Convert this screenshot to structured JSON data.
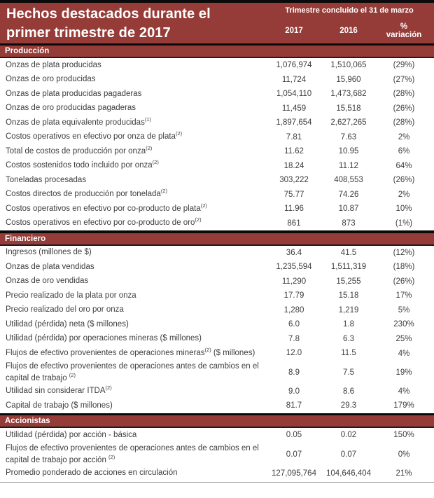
{
  "colors": {
    "brand_red": "#963C38",
    "border_black": "#0a0a0a",
    "text_gray": "#3d3d3d"
  },
  "header": {
    "title_line1": "Hechos destacados durante el",
    "title_line2": "primer trimestre de 2017",
    "period_label": "Trimestre concluido el 31 de marzo",
    "col_2017": "2017",
    "col_2016": "2016",
    "col_pct_line1": "%",
    "col_pct_line2": "variación"
  },
  "table": {
    "sections": [
      {
        "name": "Producción",
        "rows": [
          {
            "label": [
              {
                "t": "Onzas de plata producidas"
              }
            ],
            "v2017": "1,076,974",
            "v2016": "1,510,065",
            "pct": "(29%)"
          },
          {
            "label": [
              {
                "t": "Onzas de oro producidas"
              }
            ],
            "v2017": "11,724",
            "v2016": "15,960",
            "pct": "(27%)"
          },
          {
            "label": [
              {
                "t": "Onzas de plata producidas pagaderas"
              }
            ],
            "v2017": "1,054,110",
            "v2016": "1,473,682",
            "pct": "(28%)"
          },
          {
            "label": [
              {
                "t": "Onzas de oro producidas pagaderas"
              }
            ],
            "v2017": "11,459",
            "v2016": "15,518",
            "pct": "(26%)"
          },
          {
            "label": [
              {
                "t": "Onzas de plata equivalente producidas"
              },
              {
                "s": "(1)"
              }
            ],
            "v2017": "1,897,654",
            "v2016": "2,627,265",
            "pct": "(28%)"
          },
          {
            "label": [
              {
                "t": "Costos operativos en efectivo por onza de plata"
              },
              {
                "s": "(2)"
              }
            ],
            "v2017": "7.81",
            "v2016": "7.63",
            "pct": "2%"
          },
          {
            "label": [
              {
                "t": "Total de costos de producción por onza"
              },
              {
                "s": "(2)"
              }
            ],
            "v2017": "11.62",
            "v2016": "10.95",
            "pct": "6%"
          },
          {
            "label": [
              {
                "t": "Costos sostenidos todo incluido por onza"
              },
              {
                "s": "(2)"
              }
            ],
            "v2017": "18.24",
            "v2016": "11.12",
            "pct": "64%"
          },
          {
            "label": [
              {
                "t": "Toneladas procesadas"
              }
            ],
            "v2017": "303,222",
            "v2016": "408,553",
            "pct": "(26%)"
          },
          {
            "label": [
              {
                "t": "Costos directos de producción por tonelada"
              },
              {
                "s": "(2)"
              }
            ],
            "v2017": "75.77",
            "v2016": "74.26",
            "pct": "2%"
          },
          {
            "label": [
              {
                "t": "Costos operativos en efectivo por co-producto de plata"
              },
              {
                "s": "(2)"
              }
            ],
            "v2017": "11.96",
            "v2016": "10.87",
            "pct": "10%"
          },
          {
            "label": [
              {
                "t": "Costos operativos en efectivo por co-producto de oro"
              },
              {
                "s": "(2)"
              }
            ],
            "v2017": "861",
            "v2016": "873",
            "pct": "(1%)"
          }
        ]
      },
      {
        "name": "Financiero",
        "rows": [
          {
            "label": [
              {
                "t": "Ingresos (millones de $)"
              }
            ],
            "v2017": "36.4",
            "v2016": "41.5",
            "pct": "(12%)"
          },
          {
            "label": [
              {
                "t": "Onzas de plata vendidas"
              }
            ],
            "v2017": "1,235,594",
            "v2016": "1,511,319",
            "pct": "(18%)"
          },
          {
            "label": [
              {
                "t": "Onzas de oro vendidas"
              }
            ],
            "v2017": "11,290",
            "v2016": "15,255",
            "pct": "(26%)"
          },
          {
            "label": [
              {
                "t": "Precio realizado de la plata por onza"
              }
            ],
            "v2017": "17.79",
            "v2016": "15.18",
            "pct": "17%"
          },
          {
            "label": [
              {
                "t": "Precio realizado del oro por onza"
              }
            ],
            "v2017": "1,280",
            "v2016": "1,219",
            "pct": "5%"
          },
          {
            "label": [
              {
                "t": "Utilidad (pérdida) neta ($ millones)"
              }
            ],
            "v2017": "6.0",
            "v2016": "1.8",
            "pct": "230%"
          },
          {
            "label": [
              {
                "t": "Utilidad (pérdida) por operaciones mineras ($ millones)"
              }
            ],
            "v2017": "7.8",
            "v2016": "6.3",
            "pct": "25%"
          },
          {
            "label": [
              {
                "t": "Flujos de efectivo provenientes de operaciones mineras"
              },
              {
                "s": "(2)"
              },
              {
                "t": " ($ millones)"
              }
            ],
            "v2017": "12.0",
            "v2016": "11.5",
            "pct": "4%",
            "pct_low": true
          },
          {
            "label": [
              {
                "t": "Flujos de efectivo provenientes de operaciones antes de cambios en el capital de trabajo "
              },
              {
                "s": "(2)"
              }
            ],
            "v2017": "8.9",
            "v2016": "7.5",
            "pct": "19%"
          },
          {
            "label": [
              {
                "t": "Utilidad sin considerar ITDA"
              },
              {
                "s": "(2)"
              }
            ],
            "v2017": "9.0",
            "v2016": "8.6",
            "pct": "4%"
          },
          {
            "label": [
              {
                "t": "Capital de trabajo ($ millones)"
              }
            ],
            "v2017": "81.7",
            "v2016": "29.3",
            "pct": "179%"
          }
        ]
      },
      {
        "name": "Accionistas",
        "rows": [
          {
            "label": [
              {
                "t": "Utilidad (pérdida) por acción - básica"
              }
            ],
            "v2017": "0.05",
            "v2016": "0.02",
            "pct": "150%"
          },
          {
            "label": [
              {
                "t": "Flujos de efectivo provenientes de operaciones antes de cambios en el capital de trabajo por acción "
              },
              {
                "s": "(2)"
              }
            ],
            "v2017": "0.07",
            "v2016": "0.07",
            "pct": "0%"
          },
          {
            "label": [
              {
                "t": "Promedio ponderado de acciones en circulación"
              }
            ],
            "v2017": "127,095,764",
            "v2016": "104,646,404",
            "pct": "21%"
          }
        ]
      }
    ]
  }
}
